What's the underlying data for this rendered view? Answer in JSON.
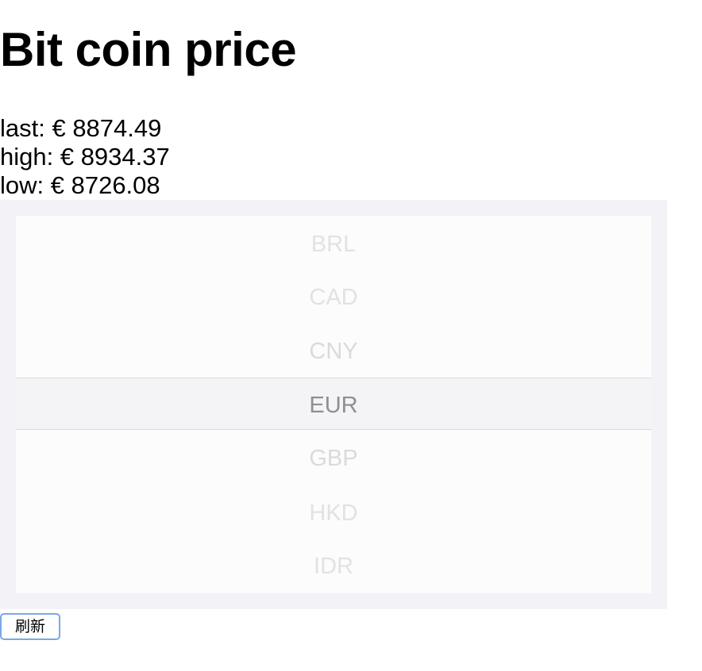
{
  "page": {
    "title": "Bit coin price"
  },
  "stats": {
    "last": "last: € 8874.49",
    "high": "high: € 8934.37",
    "low": "low: € 8726.08"
  },
  "picker": {
    "options": [
      "BRL",
      "CAD",
      "CNY",
      "EUR",
      "GBP",
      "HKD",
      "IDR"
    ],
    "selected": "EUR"
  },
  "actions": {
    "refresh_label": "刷新"
  },
  "colors": {
    "picker_background": "#f2f2f7",
    "selected_text": "#8e8e93",
    "button_focus_ring": "#7aa7e8"
  }
}
